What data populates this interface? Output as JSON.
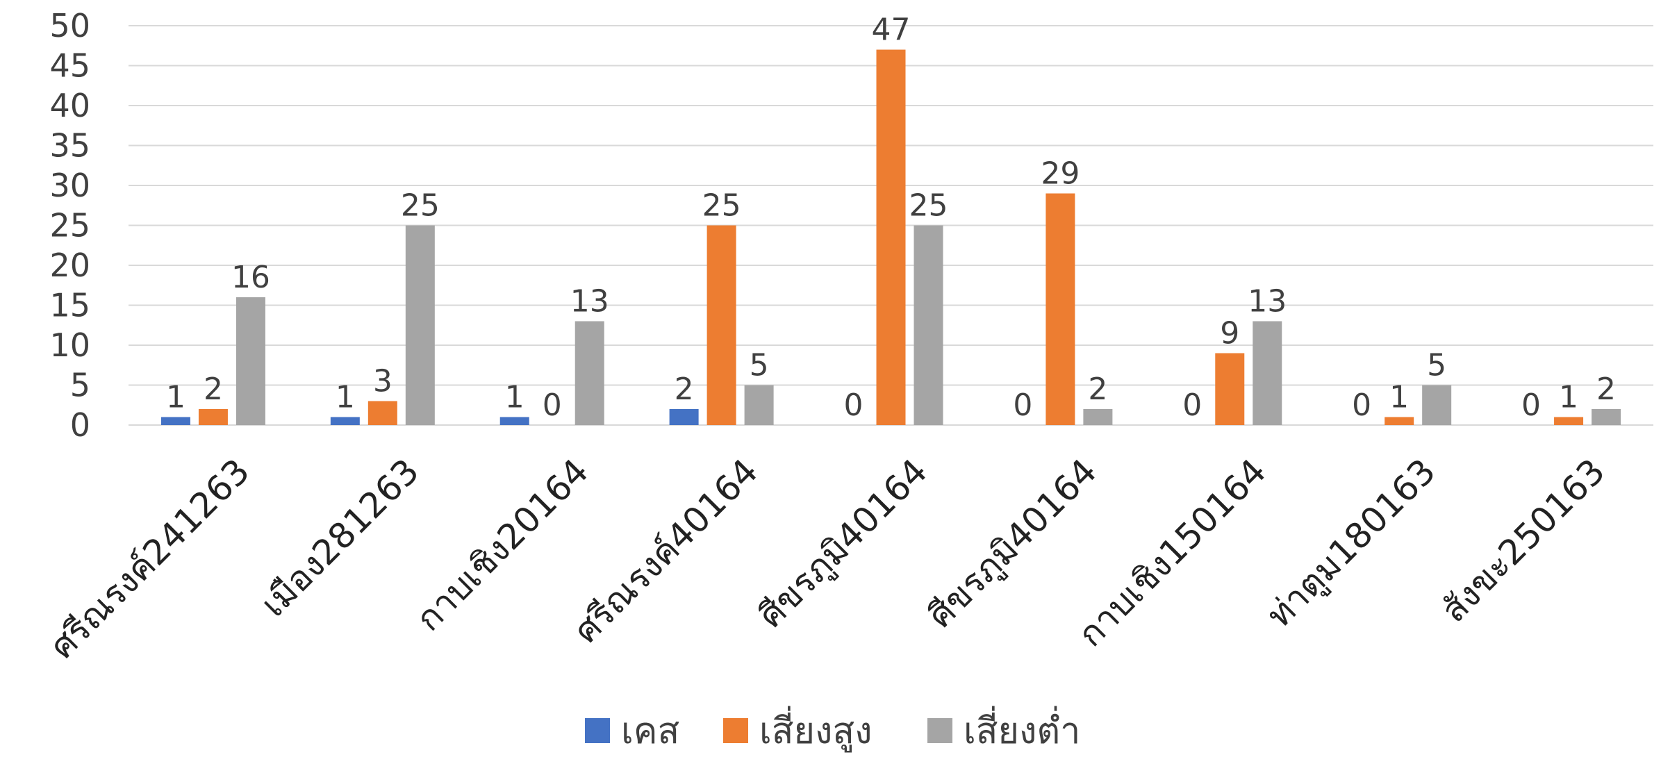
{
  "chart_data": {
    "type": "bar",
    "categories": [
      "ศรีณรงค์241263",
      "เมือง281263",
      "กาบเชิง20164",
      "ศรีณรงค์40164",
      "ศีขรภูมิ40164",
      "ศีขรภูมิ40164",
      "กาบเชิง150164",
      "ท่าตูม180163",
      "สังขะ250163"
    ],
    "series": [
      {
        "name": "เคส",
        "color": "#4472c4",
        "values": [
          1,
          1,
          1,
          2,
          0,
          0,
          0,
          0,
          0
        ]
      },
      {
        "name": "เสี่ยงสูง",
        "color": "#ed7d31",
        "values": [
          2,
          3,
          0,
          25,
          47,
          29,
          9,
          1,
          1
        ]
      },
      {
        "name": "เสี่ยงต่ำ",
        "color": "#a5a5a5",
        "values": [
          16,
          25,
          13,
          5,
          25,
          2,
          13,
          5,
          2
        ]
      }
    ],
    "ylim": [
      0,
      50
    ],
    "yticks": [
      0,
      5,
      10,
      15,
      20,
      25,
      30,
      35,
      40,
      45,
      50
    ],
    "grid": true,
    "legend": "bottom",
    "data_labels": true,
    "title": "",
    "xlabel": "",
    "ylabel": ""
  }
}
